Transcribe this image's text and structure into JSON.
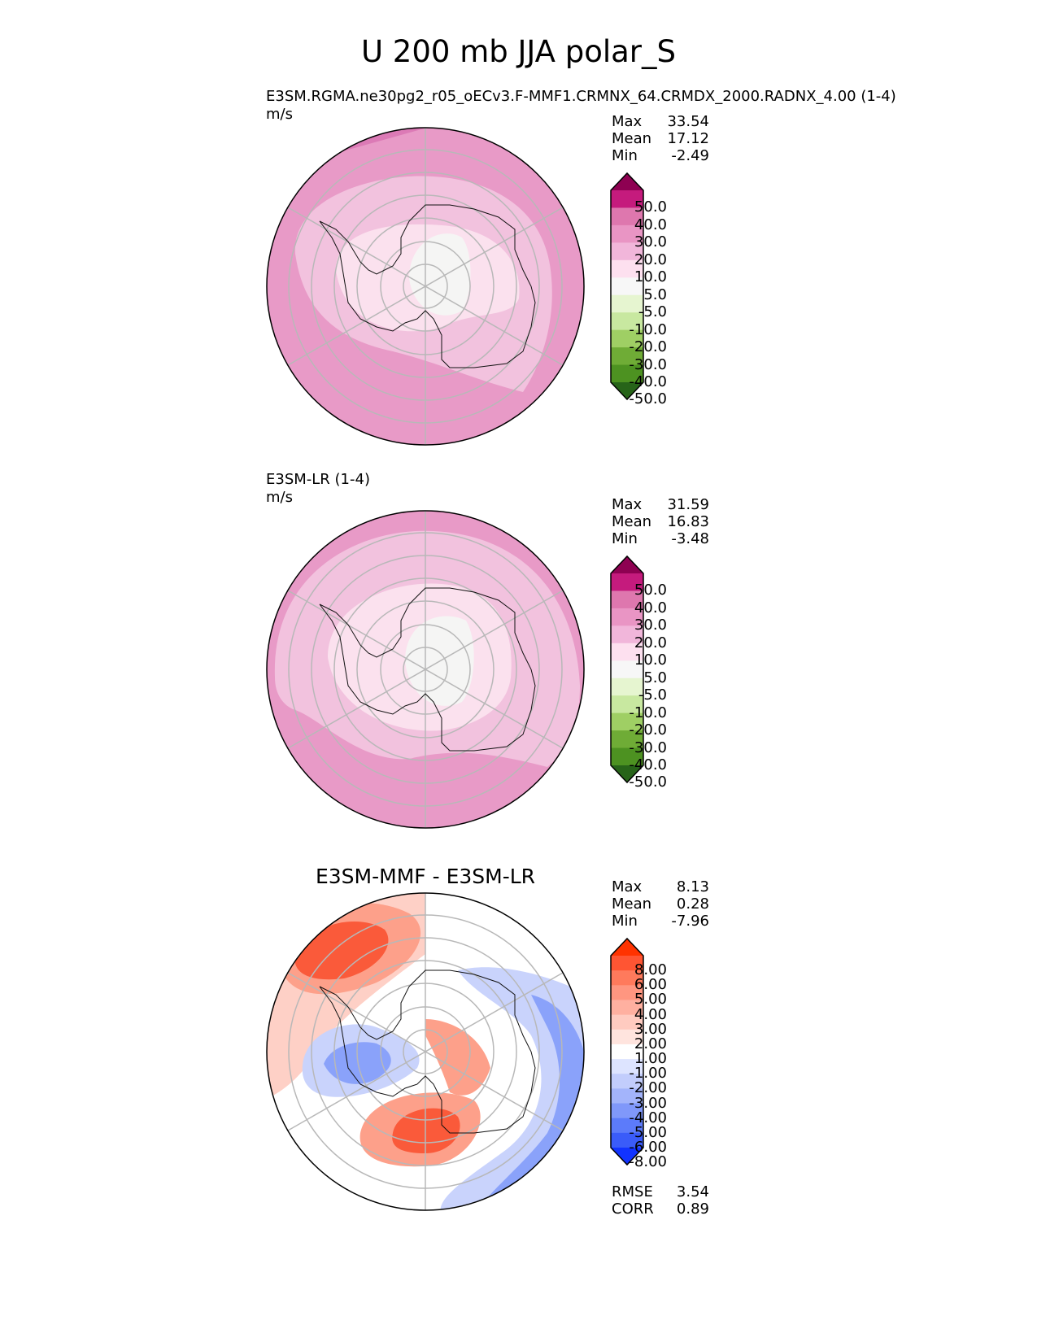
{
  "figure": {
    "title": "U 200 mb JJA polar_S"
  },
  "panels": [
    {
      "id": "test",
      "title_left": "E3SM.RGMA.ne30pg2_r05_oECv3.F-MMF1.CRMNX_64.CRMDX_2000.RADNX_4.00 (1-4)",
      "units": "m/s",
      "center_title": "",
      "stats": {
        "max_label": "Max",
        "max": "33.54",
        "mean_label": "Mean",
        "mean": "17.12",
        "min_label": "Min",
        "min": "-2.49"
      }
    },
    {
      "id": "reference",
      "title_left": "E3SM-LR (1-4)",
      "units": "m/s",
      "center_title": "",
      "stats": {
        "max_label": "Max",
        "max": "31.59",
        "mean_label": "Mean",
        "mean": "16.83",
        "min_label": "Min",
        "min": "-3.48"
      }
    },
    {
      "id": "difference",
      "title_left": "",
      "units": "",
      "center_title": "E3SM-MMF - E3SM-LR",
      "stats": {
        "max_label": "Max",
        "max": "8.13",
        "mean_label": "Mean",
        "mean": "0.28",
        "min_label": "Min",
        "min": "-7.96"
      },
      "extra_stats": {
        "rmse_label": "RMSE",
        "rmse": "3.54",
        "corr_label": "CORR",
        "corr": "0.89"
      }
    }
  ],
  "chart_data": [
    {
      "type": "heatmap",
      "projection": "south polar stereographic",
      "panel": "test",
      "variable": "U 200 mb JJA",
      "units": "m/s",
      "colorbar": {
        "ticks": [
          "50.0",
          "40.0",
          "30.0",
          "20.0",
          "10.0",
          "5.0",
          "-5.0",
          "-10.0",
          "-20.0",
          "-30.0",
          "-40.0",
          "-50.0"
        ],
        "colors": [
          "#8e0152",
          "#c51b7d",
          "#de77ae",
          "#e995c4",
          "#f1b6da",
          "#fde0ef",
          "#f7f7f7",
          "#e6f5d0",
          "#c8e8a0",
          "#9fcf64",
          "#6fac36",
          "#4d9221",
          "#276419"
        ]
      },
      "regions": [
        {
          "level": 25,
          "color": "#e89ac7"
        },
        {
          "level": 15,
          "color": "#f2c2de"
        },
        {
          "level": 7.5,
          "color": "#fbe1ee"
        },
        {
          "level": 0,
          "color": "#f5f5f4"
        }
      ]
    },
    {
      "type": "heatmap",
      "projection": "south polar stereographic",
      "panel": "reference",
      "variable": "U 200 mb JJA",
      "units": "m/s",
      "colorbar": {
        "ticks": [
          "50.0",
          "40.0",
          "30.0",
          "20.0",
          "10.0",
          "5.0",
          "-5.0",
          "-10.0",
          "-20.0",
          "-30.0",
          "-40.0",
          "-50.0"
        ],
        "colors": [
          "#8e0152",
          "#c51b7d",
          "#de77ae",
          "#e995c4",
          "#f1b6da",
          "#fde0ef",
          "#f7f7f7",
          "#e6f5d0",
          "#c8e8a0",
          "#9fcf64",
          "#6fac36",
          "#4d9221",
          "#276419"
        ]
      },
      "regions": [
        {
          "level": 25,
          "color": "#e89ac7"
        },
        {
          "level": 15,
          "color": "#f2c2de"
        },
        {
          "level": 7.5,
          "color": "#fbe1ee"
        },
        {
          "level": 0,
          "color": "#f5f5f4"
        }
      ]
    },
    {
      "type": "heatmap",
      "projection": "south polar stereographic",
      "panel": "difference",
      "variable": "U 200 mb JJA difference",
      "units": "m/s",
      "colorbar": {
        "ticks": [
          "8.00",
          "6.00",
          "5.00",
          "4.00",
          "3.00",
          "2.00",
          "1.00",
          "-1.00",
          "-2.00",
          "-3.00",
          "-4.00",
          "-5.00",
          "-6.00",
          "-8.00"
        ],
        "colors": [
          "#ff3300",
          "#ff5533",
          "#ff7a5c",
          "#ff9680",
          "#ffb0a0",
          "#ffcbc0",
          "#ffe4de",
          "#ffffff",
          "#dde4ff",
          "#c2cdfc",
          "#a3b4fb",
          "#8098fa",
          "#5c7bfa",
          "#3a5cf9",
          "#1133ff"
        ]
      },
      "regions": [
        {
          "level": 6,
          "color": "#fa5a3a"
        },
        {
          "level": 3,
          "color": "#fda08a"
        },
        {
          "level": 1.5,
          "color": "#fed0c6"
        },
        {
          "level": -2,
          "color": "#c9d3fc"
        },
        {
          "level": -4,
          "color": "#8aa2fa"
        },
        {
          "level": -6,
          "color": "#3d5ff8"
        }
      ]
    }
  ]
}
